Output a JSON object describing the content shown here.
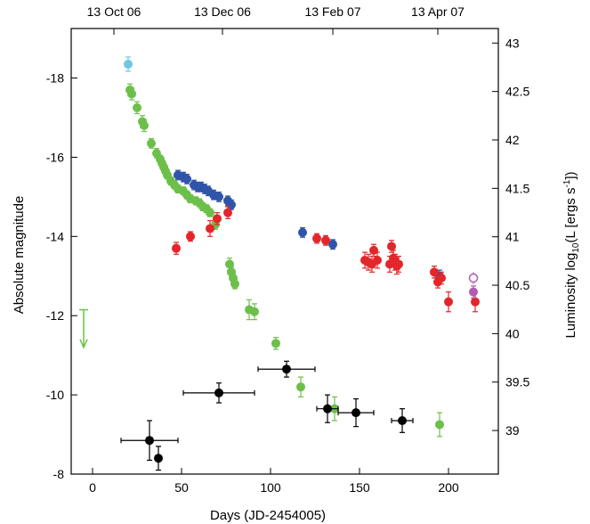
{
  "chart_data": {
    "type": "scatter",
    "xlabel": "Days (JD-2454005)",
    "ylabel": "Absolute magnitude",
    "y2label": "Luminosity log10(L [ergs s-1])",
    "xlim": [
      -12,
      228
    ],
    "ylim": [
      -8,
      -19.25
    ],
    "y2lim": [
      38.55,
      43.15
    ],
    "grid": false,
    "x_ticks": [
      0,
      50,
      100,
      150,
      200
    ],
    "y_ticks": [
      -8,
      -10,
      -12,
      -14,
      -16,
      -18
    ],
    "y2_ticks": [
      39,
      39.5,
      40,
      40.5,
      41,
      41.5,
      42,
      42.5,
      43
    ],
    "top_axis": {
      "ticks": [
        {
          "x": 12,
          "label": "13 Oct 06"
        },
        {
          "x": 73,
          "label": "13 Dec 06"
        },
        {
          "x": 135,
          "label": "13 Feb 07"
        },
        {
          "x": 194,
          "label": "13 Apr 07"
        }
      ]
    },
    "colors": {
      "cyan": "#6cc8e0",
      "green": "#6cc04a",
      "blue": "#2f54a8",
      "red": "#e3262b",
      "black": "#000000",
      "magenta": "#b45ab4"
    },
    "series": [
      {
        "color": "cyan",
        "points": [
          [
            20,
            -18.35,
            0.18
          ]
        ]
      },
      {
        "color": "green",
        "points": [
          [
            21,
            -17.7,
            0.15
          ],
          [
            22,
            -17.6,
            0.15
          ],
          [
            25,
            -17.25,
            0.15
          ],
          [
            28,
            -16.9,
            0.15
          ],
          [
            29,
            -16.8,
            0.15
          ],
          [
            33,
            -16.35,
            0.12
          ],
          [
            36,
            -16.1,
            0.12
          ],
          [
            38,
            -15.95,
            0.1
          ],
          [
            39,
            -15.85,
            0.1
          ],
          [
            40,
            -15.75,
            0.1
          ],
          [
            41,
            -15.65,
            0.1
          ],
          [
            42,
            -15.55,
            0.1
          ],
          [
            44,
            -15.4,
            0.1
          ],
          [
            46,
            -15.3,
            0.1
          ],
          [
            48,
            -15.2,
            0.1
          ],
          [
            51,
            -15.15,
            0.1
          ],
          [
            53,
            -15.05,
            0.1
          ],
          [
            55,
            -14.95,
            0.1
          ],
          [
            58,
            -14.9,
            0.1
          ],
          [
            60,
            -14.85,
            0.1
          ],
          [
            62,
            -14.75,
            0.1
          ],
          [
            64,
            -14.7,
            0.1
          ],
          [
            66,
            -14.6,
            0.1
          ],
          [
            69,
            -14.3,
            0.12
          ],
          [
            77,
            -13.3,
            0.15
          ],
          [
            78,
            -13.1,
            0.12
          ],
          [
            79,
            -12.95,
            0.12
          ],
          [
            80,
            -12.8,
            0.12
          ],
          [
            88,
            -12.15,
            0.25
          ],
          [
            91,
            -12.1,
            0.2
          ],
          [
            103,
            -11.3,
            0.15
          ],
          [
            117,
            -10.2,
            0.25
          ],
          [
            136,
            -9.65,
            0.3
          ],
          [
            195,
            -9.25,
            0.3
          ]
        ]
      },
      {
        "color": "blue",
        "points": [
          [
            48,
            -15.55,
            0.12
          ],
          [
            51,
            -15.5,
            0.12
          ],
          [
            53,
            -15.45,
            0.12
          ],
          [
            57,
            -15.3,
            0.12
          ],
          [
            59,
            -15.25,
            0.12
          ],
          [
            61,
            -15.25,
            0.12
          ],
          [
            63,
            -15.2,
            0.12
          ],
          [
            65,
            -15.15,
            0.12
          ],
          [
            68,
            -15.05,
            0.12
          ],
          [
            71,
            -15.0,
            0.12
          ],
          [
            76,
            -14.9,
            0.12
          ],
          [
            78,
            -14.8,
            0.12
          ],
          [
            118,
            -14.1,
            0.12
          ],
          [
            135,
            -13.8,
            0.12
          ],
          [
            195,
            -13.0,
            0.15
          ]
        ]
      },
      {
        "color": "red",
        "points": [
          [
            47,
            -13.7,
            0.15
          ],
          [
            55,
            -14.0,
            0.12
          ],
          [
            66,
            -14.2,
            0.2
          ],
          [
            70,
            -14.45,
            0.15
          ],
          [
            76,
            -14.6,
            0.15
          ],
          [
            126,
            -13.95,
            0.12
          ],
          [
            131,
            -13.9,
            0.12
          ],
          [
            153,
            -13.4,
            0.2
          ],
          [
            155,
            -13.35,
            0.2
          ],
          [
            157,
            -13.3,
            0.2
          ],
          [
            158,
            -13.65,
            0.15
          ],
          [
            160,
            -13.4,
            0.2
          ],
          [
            167,
            -13.3,
            0.2
          ],
          [
            168,
            -13.75,
            0.15
          ],
          [
            169,
            -13.45,
            0.2
          ],
          [
            170,
            -13.35,
            0.2
          ],
          [
            171,
            -13.25,
            0.2
          ],
          [
            172,
            -13.3,
            0.2
          ],
          [
            192,
            -13.1,
            0.15
          ],
          [
            194,
            -12.85,
            0.15
          ],
          [
            196,
            -12.95,
            0.15
          ],
          [
            200,
            -12.35,
            0.25
          ],
          [
            215,
            -12.35,
            0.25
          ]
        ]
      },
      {
        "color": "magenta",
        "points": [
          [
            214,
            -12.6,
            0.15
          ]
        ],
        "open_points": [
          [
            214,
            -12.95,
            0.15
          ]
        ]
      },
      {
        "color": "black",
        "with_xerr": true,
        "points": [
          [
            32,
            -8.85,
            0.5,
            16
          ],
          [
            37,
            -8.4,
            0.3,
            0
          ],
          [
            71,
            -10.05,
            0.25,
            20
          ],
          [
            109,
            -10.65,
            0.2,
            16
          ],
          [
            132,
            -9.65,
            0.35,
            6
          ],
          [
            148,
            -9.55,
            0.35,
            10
          ],
          [
            174,
            -9.35,
            0.3,
            6
          ]
        ]
      }
    ],
    "upper_limit": {
      "x": -5,
      "y": -12.15,
      "to": -11.2,
      "color": "green"
    }
  }
}
